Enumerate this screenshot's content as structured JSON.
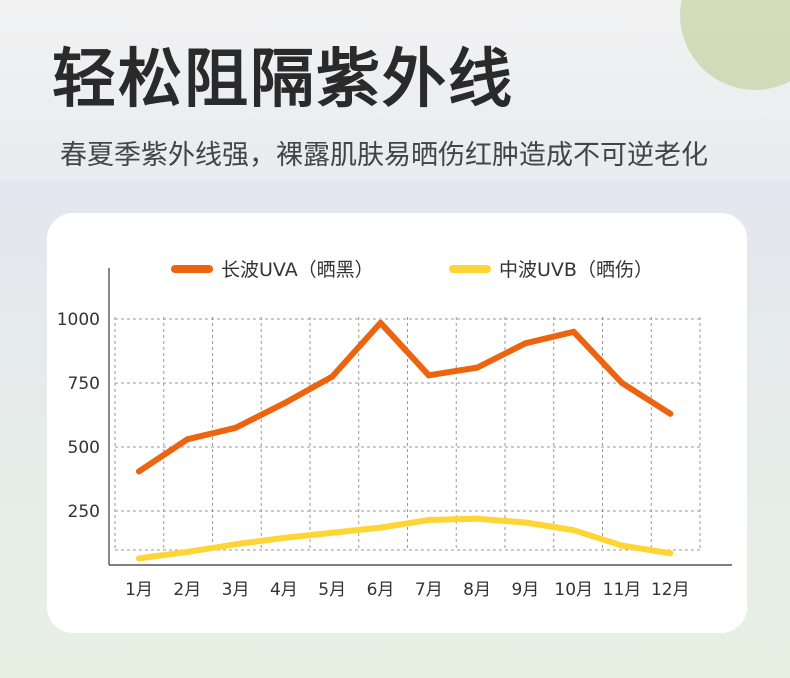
{
  "header": {
    "title": "轻松阻隔紫外线",
    "subtitle": "春夏季紫外线强，裸露肌肤易晒伤红肿造成不可逆老化"
  },
  "colors": {
    "uva": "#ec6410",
    "uvb": "#fdd535",
    "title": "#2a2a2a",
    "grid": "#9a9a9a",
    "axis": "#555555"
  },
  "chart_data": {
    "type": "line",
    "categories": [
      "1月",
      "2月",
      "3月",
      "4月",
      "5月",
      "6月",
      "7月",
      "8月",
      "9月",
      "10月",
      "11月",
      "12月"
    ],
    "series": [
      {
        "name": "长波UVA（晒黑）",
        "color": "#ec6410",
        "values": [
          405,
          530,
          575,
          670,
          775,
          985,
          780,
          810,
          905,
          950,
          750,
          630
        ]
      },
      {
        "name": "中波UVB（晒伤）",
        "color": "#fdd535",
        "values": [
          65,
          90,
          120,
          145,
          165,
          185,
          215,
          220,
          205,
          175,
          115,
          85
        ]
      }
    ],
    "yticks": [
      250,
      500,
      750,
      1000
    ],
    "ylim": [
      0,
      1000
    ],
    "legend": "top",
    "grid": true,
    "xlabel": "",
    "ylabel": ""
  }
}
